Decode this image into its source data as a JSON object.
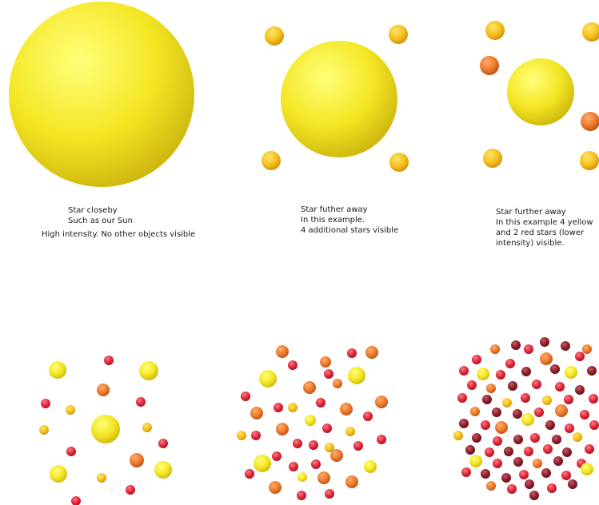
{
  "captions": {
    "closeby": {
      "line1": "Star closeby",
      "line2": "Such as our Sun",
      "line3": "High intensity. No other objects visible"
    },
    "further_a": {
      "line1": "Star futher away",
      "line2": "In this example.",
      "line3": "4 additional stars visible"
    },
    "further_b": {
      "line1": "Star further away",
      "line2": "In this example 4 yellow",
      "line3": "and 2 red stars (lower",
      "line4": "intensity) visible."
    }
  },
  "colors": {
    "yellow": "#f2e11d",
    "gold": "#f7c21a",
    "orange": "#ec7a2e",
    "red": "#e0273a",
    "dark_red": "#8e1f2c"
  }
}
